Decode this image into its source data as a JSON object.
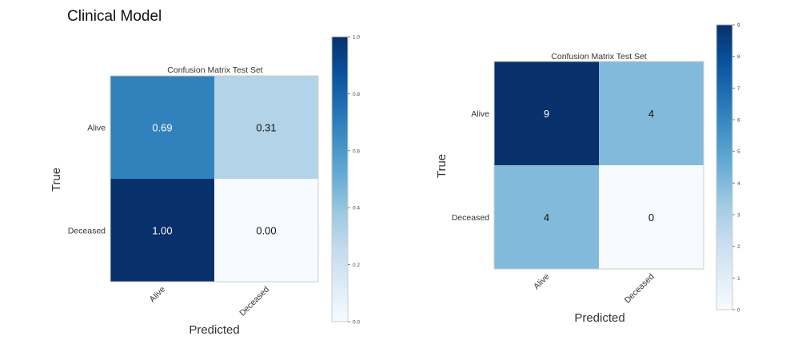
{
  "page": {
    "title": "Clinical Model"
  },
  "chart_data": [
    {
      "type": "heatmap",
      "title": "Confusion Matrix Test Set",
      "xlabel": "Predicted",
      "ylabel": "True",
      "row_labels": [
        "Alive",
        "Deceased"
      ],
      "col_labels": [
        "Alive",
        "Deceased"
      ],
      "values": [
        [
          0.69,
          0.31
        ],
        [
          1.0,
          0.0
        ]
      ],
      "cell_labels": [
        [
          "0.69",
          "0.31"
        ],
        [
          "1.00",
          "0.00"
        ]
      ],
      "colorbar": {
        "min": 0.0,
        "max": 1.0,
        "ticks": [
          "0.0",
          "0.2",
          "0.4",
          "0.6",
          "0.8",
          "1.0"
        ],
        "tick_values": [
          0,
          0.2,
          0.4,
          0.6,
          0.8,
          1.0
        ]
      },
      "colormap": "Blues",
      "grid": false
    },
    {
      "type": "heatmap",
      "title": "Confusion Matrix Test Set",
      "xlabel": "Predicted",
      "ylabel": "True",
      "row_labels": [
        "Alive",
        "Deceased"
      ],
      "col_labels": [
        "Alive",
        "Deceased"
      ],
      "values": [
        [
          9,
          4
        ],
        [
          4,
          0
        ]
      ],
      "cell_labels": [
        [
          "9",
          "4"
        ],
        [
          "4",
          "0"
        ]
      ],
      "colorbar": {
        "min": 0,
        "max": 9,
        "ticks": [
          "0",
          "1",
          "2",
          "3",
          "4",
          "5",
          "6",
          "7",
          "8",
          "9"
        ],
        "tick_values": [
          0,
          1,
          2,
          3,
          4,
          5,
          6,
          7,
          8,
          9
        ]
      },
      "colormap": "Blues",
      "grid": false
    }
  ]
}
